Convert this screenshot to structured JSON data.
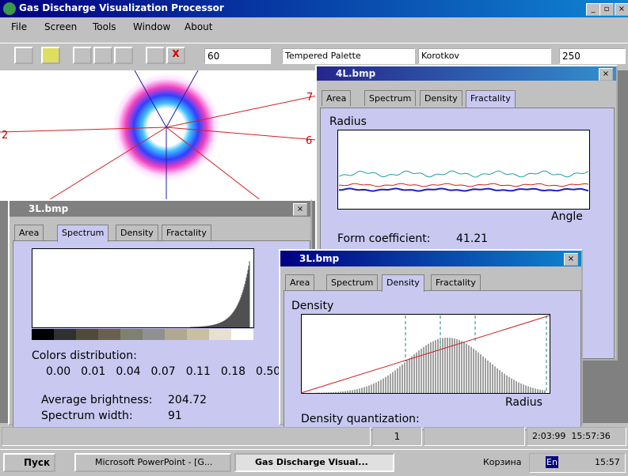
{
  "app": {
    "title": "Gas Discharge Visualization Processor",
    "menu": [
      "File",
      "Screen",
      "Tools",
      "Window",
      "About"
    ],
    "toolbar": {
      "brightness": "60",
      "palette": "Tempered Palette",
      "method": "Korotkov",
      "threshold": "250"
    }
  },
  "image_window": {
    "labels": [
      "7",
      "2",
      "6"
    ]
  },
  "fractality_window": {
    "title": "4L.bmp",
    "tabs": [
      "Area",
      "Spectrum",
      "Density",
      "Fractality"
    ],
    "y_label": "Radius",
    "x_label": "Angle",
    "form_coefficient_label": "Form coefficient:",
    "form_coefficient": "41.21"
  },
  "spectrum_window": {
    "title": "3L.bmp",
    "tabs": [
      "Area",
      "Spectrum",
      "Density",
      "Fractality"
    ],
    "colors_label": "Colors distribution:",
    "colors": [
      "0.00",
      "0.01",
      "0.04",
      "0.07",
      "0.11",
      "0.18",
      "0.50"
    ],
    "brightness_label": "Average brightness:",
    "brightness": "204.72",
    "width_label": "Spectrum width:",
    "width": "91"
  },
  "density_window": {
    "title": "3L.bmp",
    "tabs": [
      "Area",
      "Spectrum",
      "Density",
      "Fractality"
    ],
    "y_label": "Density",
    "x_label": "Radius",
    "quantization_label": "Density quantization:"
  },
  "status_bar": {
    "panel": "1",
    "date": "2:03:99",
    "time": "15:57:36"
  },
  "taskbar": {
    "start": "Пуск",
    "tasks": [
      "Microsoft PowerPoint - [G...",
      "Gas Discharge Visual..."
    ],
    "tray": [
      "Корзина",
      "En",
      "15:57"
    ]
  }
}
